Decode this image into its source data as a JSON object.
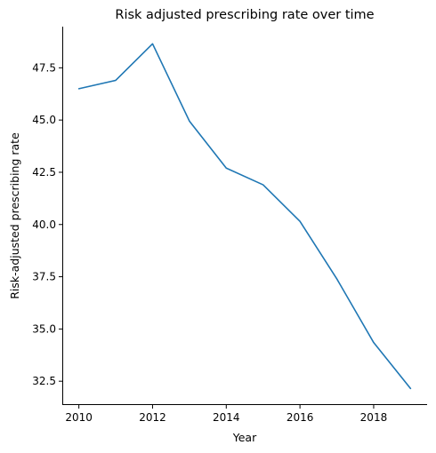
{
  "chart_data": {
    "type": "line",
    "title": "Risk adjusted prescribing rate over time",
    "xlabel": "Year",
    "ylabel": "Risk-adjusted prescribing rate",
    "xlim": [
      2009.55,
      2019.45
    ],
    "ylim": [
      31.36,
      49.47
    ],
    "xticks": [
      2010,
      2012,
      2014,
      2016,
      2018
    ],
    "yticks": [
      32.5,
      35.0,
      37.5,
      40.0,
      42.5,
      45.0,
      47.5
    ],
    "ytick_labels": [
      "32.5",
      "35.0",
      "37.5",
      "40.0",
      "42.5",
      "45.0",
      "47.5"
    ],
    "grid": false,
    "series": [
      {
        "color": "#1f77b4",
        "x": [
          2010,
          2011,
          2012,
          2013,
          2014,
          2015,
          2016,
          2017,
          2018,
          2019
        ],
        "y": [
          46.5,
          46.9,
          48.65,
          44.95,
          42.7,
          41.9,
          40.15,
          37.4,
          34.35,
          32.15
        ]
      }
    ]
  }
}
